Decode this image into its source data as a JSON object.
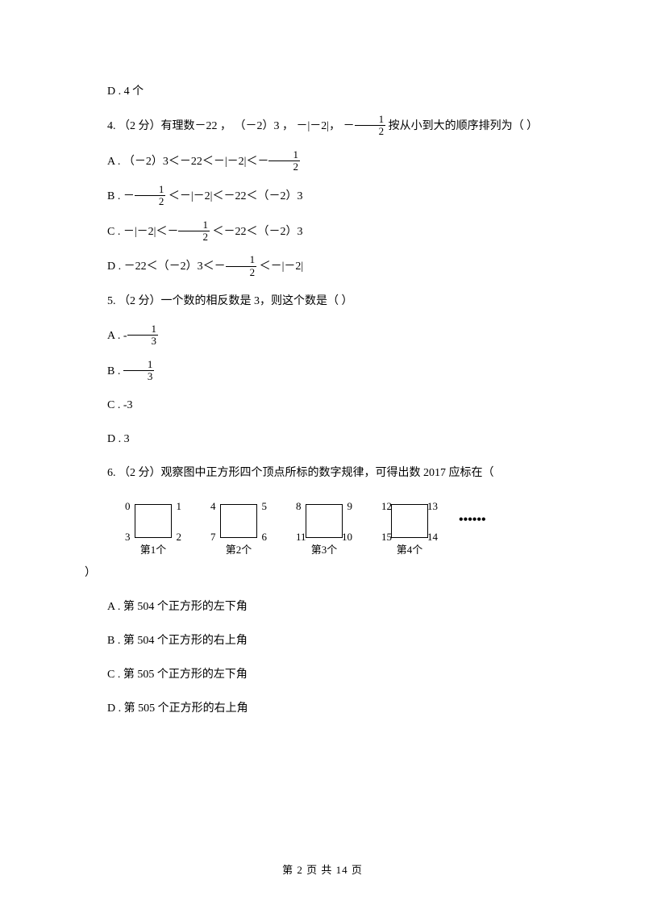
{
  "q3_d": "D . 4 个",
  "q4": {
    "stem_prefix": "4.  （2 分）有理数－22 ，  （－2）3 ，  －|－2|，  ",
    "stem_suffix": "  按从小到大的顺序排列为（     ）",
    "optA_prefix": "A .  （－2）3＜－22＜－|－2|＜",
    "optB_prefix": "B .  ",
    "optB_suffix": " ＜－|－2|＜－22＜（－2）3",
    "optC_prefix": "C .  －|－2|＜",
    "optC_suffix": " ＜－22＜（－2）3",
    "optD_prefix": "D .  －22＜（－2）3＜",
    "optD_suffix": " ＜－|－2|"
  },
  "q5": {
    "stem": "5.  （2 分）一个数的相反数是 3，则这个数是（     ）",
    "optA_prefix": "A .  ",
    "optB_prefix": "B .  ",
    "optC": "C .  -3",
    "optD": "D .  3"
  },
  "q6": {
    "stem": "6.       （2 分）观察图中正方形四个顶点所标的数字规律，可得出数 2017 应标在（",
    "close": "）",
    "optA": "A .  第 504 个正方形的左下角",
    "optB": "B .  第 504 个正方形的右上角",
    "optC": "C .  第 505 个正方形的左下角",
    "optD": "D .  第 505 个正方形的右上角"
  },
  "squares": [
    {
      "tl": "0",
      "tr": "1",
      "bl": "3",
      "br": "2",
      "label": "第1个"
    },
    {
      "tl": "4",
      "tr": "5",
      "bl": "7",
      "br": "6",
      "label": "第2个"
    },
    {
      "tl": "8",
      "tr": "9",
      "bl": "11",
      "br": "10",
      "label": "第3个"
    },
    {
      "tl": "12",
      "tr": "13",
      "bl": "15",
      "br": "14",
      "label": "第4个"
    }
  ],
  "frac_half": {
    "sign": "－",
    "num": "1",
    "den": "2"
  },
  "frac_third_neg": {
    "sign": "-",
    "num": "1",
    "den": "3"
  },
  "frac_third_pos": {
    "sign": "",
    "num": "1",
    "den": "3"
  },
  "dots": "••••••",
  "footer": "第 2 页 共 14 页"
}
